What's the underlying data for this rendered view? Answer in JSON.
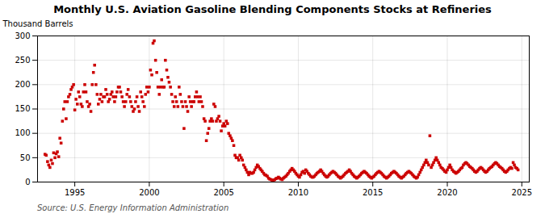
{
  "chart_data": {
    "type": "scatter",
    "title": "Monthly U.S. Aviation Gasoline Blending Components Stocks at Refineries",
    "ylabel": "Thousand Barrels",
    "annotation": "Source: U.S. Energy Information Administration",
    "color": "#CC0000",
    "marker": "square",
    "grid": true,
    "xlim": [
      1992.5,
      2025.5
    ],
    "xticks": [
      1995,
      2000,
      2005,
      2010,
      2015,
      2020,
      2025
    ],
    "ylim": [
      0,
      300
    ],
    "yticks": [
      0,
      50,
      100,
      150,
      200,
      250,
      300
    ],
    "x": [
      1993.0,
      1993.08,
      1993.17,
      1993.25,
      1993.33,
      1993.42,
      1993.5,
      1993.58,
      1993.67,
      1993.75,
      1993.83,
      1993.92,
      1994.0,
      1994.08,
      1994.17,
      1994.25,
      1994.33,
      1994.42,
      1994.5,
      1994.58,
      1994.67,
      1994.75,
      1994.83,
      1994.92,
      1995.0,
      1995.08,
      1995.17,
      1995.25,
      1995.33,
      1995.42,
      1995.5,
      1995.58,
      1995.67,
      1995.75,
      1995.83,
      1995.92,
      1996.0,
      1996.08,
      1996.17,
      1996.25,
      1996.33,
      1996.42,
      1996.5,
      1996.58,
      1996.67,
      1996.75,
      1996.83,
      1996.92,
      1997.0,
      1997.08,
      1997.17,
      1997.25,
      1997.33,
      1997.42,
      1997.5,
      1997.58,
      1997.67,
      1997.75,
      1997.83,
      1997.92,
      1998.0,
      1998.08,
      1998.17,
      1998.25,
      1998.33,
      1998.42,
      1998.5,
      1998.58,
      1998.67,
      1998.75,
      1998.83,
      1998.92,
      1999.0,
      1999.08,
      1999.17,
      1999.25,
      1999.33,
      1999.42,
      1999.5,
      1999.58,
      1999.67,
      1999.75,
      1999.83,
      1999.92,
      2000.0,
      2000.08,
      2000.17,
      2000.25,
      2000.33,
      2000.42,
      2000.5,
      2000.58,
      2000.67,
      2000.75,
      2000.83,
      2000.92,
      2001.0,
      2001.08,
      2001.17,
      2001.25,
      2001.33,
      2001.42,
      2001.5,
      2001.58,
      2001.67,
      2001.75,
      2001.83,
      2001.92,
      2002.0,
      2002.08,
      2002.17,
      2002.25,
      2002.33,
      2002.42,
      2002.5,
      2002.58,
      2002.67,
      2002.75,
      2002.83,
      2002.92,
      2003.0,
      2003.08,
      2003.17,
      2003.25,
      2003.33,
      2003.42,
      2003.5,
      2003.58,
      2003.67,
      2003.75,
      2003.83,
      2003.92,
      2004.0,
      2004.08,
      2004.17,
      2004.25,
      2004.33,
      2004.42,
      2004.5,
      2004.58,
      2004.67,
      2004.75,
      2004.83,
      2004.92,
      2005.0,
      2005.08,
      2005.17,
      2005.25,
      2005.33,
      2005.42,
      2005.5,
      2005.58,
      2005.67,
      2005.75,
      2005.83,
      2005.92,
      2006.0,
      2006.08,
      2006.17,
      2006.25,
      2006.33,
      2006.42,
      2006.5,
      2006.58,
      2006.67,
      2006.75,
      2006.83,
      2006.92,
      2007.0,
      2007.08,
      2007.17,
      2007.25,
      2007.33,
      2007.42,
      2007.5,
      2007.58,
      2007.67,
      2007.75,
      2007.83,
      2007.92,
      2008.0,
      2008.08,
      2008.17,
      2008.25,
      2008.33,
      2008.42,
      2008.5,
      2008.58,
      2008.67,
      2008.75,
      2008.83,
      2008.92,
      2009.0,
      2009.08,
      2009.17,
      2009.25,
      2009.33,
      2009.42,
      2009.5,
      2009.58,
      2009.67,
      2009.75,
      2009.83,
      2009.92,
      2010.0,
      2010.08,
      2010.17,
      2010.25,
      2010.33,
      2010.42,
      2010.5,
      2010.58,
      2010.67,
      2010.75,
      2010.83,
      2010.92,
      2011.0,
      2011.08,
      2011.17,
      2011.25,
      2011.33,
      2011.42,
      2011.5,
      2011.58,
      2011.67,
      2011.75,
      2011.83,
      2011.92,
      2012.0,
      2012.08,
      2012.17,
      2012.25,
      2012.33,
      2012.42,
      2012.5,
      2012.58,
      2012.67,
      2012.75,
      2012.83,
      2012.92,
      2013.0,
      2013.08,
      2013.17,
      2013.25,
      2013.33,
      2013.42,
      2013.5,
      2013.58,
      2013.67,
      2013.75,
      2013.83,
      2013.92,
      2014.0,
      2014.08,
      2014.17,
      2014.25,
      2014.33,
      2014.42,
      2014.5,
      2014.58,
      2014.67,
      2014.75,
      2014.83,
      2014.92,
      2015.0,
      2015.08,
      2015.17,
      2015.25,
      2015.33,
      2015.42,
      2015.5,
      2015.58,
      2015.67,
      2015.75,
      2015.83,
      2015.92,
      2016.0,
      2016.08,
      2016.17,
      2016.25,
      2016.33,
      2016.42,
      2016.5,
      2016.58,
      2016.67,
      2016.75,
      2016.83,
      2016.92,
      2017.0,
      2017.08,
      2017.17,
      2017.25,
      2017.33,
      2017.42,
      2017.5,
      2017.58,
      2017.67,
      2017.75,
      2017.83,
      2017.92,
      2018.0,
      2018.08,
      2018.17,
      2018.25,
      2018.33,
      2018.42,
      2018.5,
      2018.58,
      2018.67,
      2018.75,
      2018.83,
      2018.92,
      2019.0,
      2019.08,
      2019.17,
      2019.25,
      2019.33,
      2019.42,
      2019.5,
      2019.58,
      2019.67,
      2019.75,
      2019.83,
      2019.92,
      2020.0,
      2020.08,
      2020.17,
      2020.25,
      2020.33,
      2020.42,
      2020.5,
      2020.58,
      2020.67,
      2020.75,
      2020.83,
      2020.92,
      2021.0,
      2021.08,
      2021.17,
      2021.25,
      2021.33,
      2021.42,
      2021.5,
      2021.58,
      2021.67,
      2021.75,
      2021.83,
      2021.92,
      2022.0,
      2022.08,
      2022.17,
      2022.25,
      2022.33,
      2022.42,
      2022.5,
      2022.58,
      2022.67,
      2022.75,
      2022.83,
      2022.92,
      2023.0,
      2023.08,
      2023.17,
      2023.25,
      2023.33,
      2023.42,
      2023.5,
      2023.58,
      2023.67,
      2023.75,
      2023.83,
      2023.92,
      2024.0,
      2024.08,
      2024.17,
      2024.25,
      2024.33,
      2024.42,
      2024.5,
      2024.58,
      2024.67,
      2024.75
    ],
    "values": [
      57,
      55,
      42,
      35,
      30,
      45,
      38,
      60,
      50,
      58,
      62,
      52,
      90,
      80,
      125,
      150,
      165,
      130,
      165,
      175,
      180,
      190,
      195,
      200,
      148,
      170,
      160,
      185,
      175,
      160,
      155,
      185,
      200,
      185,
      165,
      155,
      160,
      145,
      200,
      225,
      240,
      200,
      180,
      160,
      170,
      180,
      165,
      175,
      175,
      190,
      180,
      165,
      170,
      180,
      185,
      175,
      165,
      175,
      185,
      195,
      195,
      185,
      175,
      165,
      155,
      165,
      180,
      190,
      175,
      165,
      155,
      145,
      150,
      165,
      175,
      155,
      145,
      185,
      175,
      165,
      155,
      180,
      195,
      185,
      195,
      230,
      220,
      285,
      290,
      250,
      225,
      195,
      180,
      195,
      210,
      195,
      195,
      250,
      230,
      215,
      205,
      195,
      180,
      165,
      155,
      175,
      165,
      155,
      195,
      180,
      165,
      155,
      110,
      165,
      155,
      145,
      175,
      165,
      155,
      165,
      165,
      175,
      185,
      175,
      165,
      175,
      165,
      155,
      130,
      125,
      85,
      100,
      110,
      125,
      130,
      125,
      160,
      155,
      125,
      130,
      135,
      125,
      105,
      115,
      120,
      115,
      125,
      120,
      100,
      95,
      90,
      85,
      75,
      55,
      50,
      50,
      45,
      55,
      50,
      45,
      35,
      30,
      25,
      20,
      15,
      20,
      18,
      18,
      20,
      25,
      30,
      35,
      32,
      28,
      25,
      22,
      18,
      15,
      14,
      12,
      8,
      6,
      5,
      4,
      3,
      5,
      7,
      8,
      10,
      8,
      6,
      5,
      8,
      10,
      12,
      15,
      18,
      22,
      25,
      28,
      25,
      22,
      18,
      15,
      12,
      10,
      15,
      20,
      22,
      18,
      25,
      22,
      18,
      15,
      12,
      10,
      10,
      12,
      15,
      18,
      20,
      22,
      25,
      22,
      18,
      15,
      12,
      10,
      12,
      15,
      18,
      20,
      22,
      20,
      18,
      15,
      12,
      10,
      8,
      10,
      12,
      15,
      18,
      20,
      22,
      25,
      22,
      18,
      15,
      12,
      10,
      8,
      10,
      12,
      15,
      18,
      20,
      22,
      20,
      18,
      15,
      12,
      10,
      8,
      10,
      12,
      15,
      18,
      20,
      22,
      20,
      18,
      15,
      12,
      10,
      8,
      10,
      12,
      15,
      18,
      20,
      22,
      20,
      18,
      15,
      12,
      10,
      8,
      10,
      12,
      15,
      18,
      20,
      22,
      20,
      18,
      15,
      12,
      10,
      8,
      10,
      15,
      20,
      25,
      30,
      35,
      40,
      45,
      40,
      35,
      95,
      30,
      35,
      40,
      45,
      50,
      45,
      40,
      35,
      30,
      28,
      25,
      22,
      20,
      25,
      30,
      35,
      30,
      25,
      22,
      20,
      18,
      20,
      22,
      25,
      28,
      30,
      35,
      38,
      40,
      38,
      35,
      32,
      30,
      28,
      25,
      22,
      20,
      22,
      25,
      28,
      30,
      28,
      25,
      22,
      20,
      22,
      25,
      28,
      30,
      32,
      35,
      38,
      40,
      38,
      35,
      32,
      30,
      28,
      25,
      22,
      20,
      22,
      25,
      28,
      30,
      28,
      40,
      35,
      30,
      28,
      25
    ]
  }
}
